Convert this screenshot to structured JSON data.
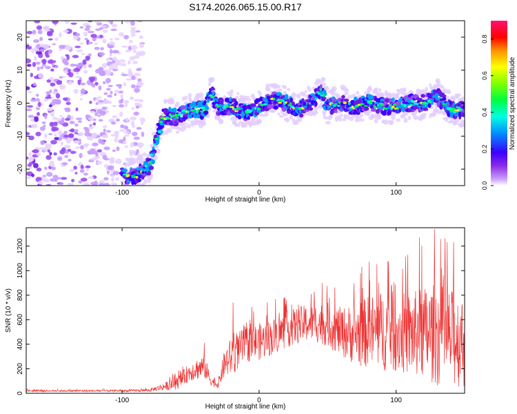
{
  "title": "S174.2026.065.15.00.R17",
  "chart_data": [
    {
      "type": "heatmap",
      "title": "S174.2026.065.15.00.R17",
      "xlabel": "Height of straight line (km)",
      "ylabel": "Frequency (Hz)",
      "xlim": [
        -170,
        150
      ],
      "ylim": [
        -25,
        25
      ],
      "xticks": [
        -100,
        0,
        100
      ],
      "xtick_labels": [
        "-100",
        "0",
        "100"
      ],
      "yticks": [
        -20,
        -10,
        0,
        10,
        20
      ],
      "ytick_labels": [
        "-20",
        "-10",
        "0",
        "10",
        "20"
      ],
      "colorbar": {
        "label": "Normalized spectral amplitude",
        "range": [
          0.0,
          0.9
        ],
        "ticks": [
          0.0,
          0.2,
          0.4,
          0.6,
          0.8
        ],
        "tick_labels": [
          "0.0",
          "0.2",
          "0.4",
          "0.6",
          "0.8"
        ]
      },
      "ridge": {
        "x": [
          -100,
          -90,
          -80,
          -70,
          -60,
          -50,
          -40,
          -35,
          -30,
          -20,
          -10,
          0,
          10,
          20,
          30,
          40,
          45,
          50,
          60,
          70,
          80,
          90,
          100,
          110,
          120,
          130,
          140,
          150
        ],
        "y": [
          -22,
          -22,
          -19,
          -4,
          -4,
          -2,
          -2,
          3,
          -1,
          -1,
          -3,
          -1,
          1,
          0,
          -2,
          1,
          4,
          -1,
          0,
          -1,
          0,
          -1,
          -1,
          0,
          0,
          2,
          -2,
          -2
        ]
      }
    },
    {
      "type": "line",
      "xlabel": "Height of straight line (km)",
      "ylabel": "SNR (10 * v/v)",
      "xlim": [
        -170,
        150
      ],
      "ylim": [
        0,
        1350
      ],
      "xticks": [
        -100,
        0,
        100
      ],
      "xtick_labels": [
        "-100",
        "0",
        "100"
      ],
      "yticks": [
        0,
        200,
        400,
        600,
        800,
        1000,
        1200
      ],
      "ytick_labels": [
        "0",
        "200",
        "400",
        "600",
        "800",
        "1000",
        "1200"
      ],
      "series": [
        {
          "name": "SNR",
          "color": "#ee3333",
          "envelope": {
            "x": [
              -170,
              -100,
              -80,
              -60,
              -50,
              -40,
              -35,
              -30,
              -25,
              -20,
              -15,
              -10,
              0,
              10,
              20,
              30,
              40,
              50,
              60,
              70,
              80,
              90,
              100,
              110,
              120,
              130,
              140,
              150
            ],
            "mean": [
              20,
              20,
              25,
              80,
              180,
              220,
              100,
              70,
              250,
              300,
              350,
              400,
              420,
              460,
              520,
              560,
              580,
              560,
              500,
              480,
              500,
              510,
              500,
              480,
              490,
              480,
              450,
              420
            ],
            "spread": [
              8,
              8,
              12,
              50,
              80,
              100,
              40,
              30,
              120,
              160,
              150,
              150,
              150,
              150,
              150,
              150,
              160,
              180,
              200,
              250,
              300,
              330,
              330,
              340,
              380,
              420,
              400,
              380
            ]
          },
          "peaks": [
            {
              "x": -40,
              "y": 410
            },
            {
              "x": -19,
              "y": 740
            },
            {
              "x": 38,
              "y": 810
            },
            {
              "x": 75,
              "y": 1030
            },
            {
              "x": 117,
              "y": 1270
            },
            {
              "x": 128,
              "y": 1340
            },
            {
              "x": 142,
              "y": 1230
            }
          ]
        }
      ]
    }
  ]
}
